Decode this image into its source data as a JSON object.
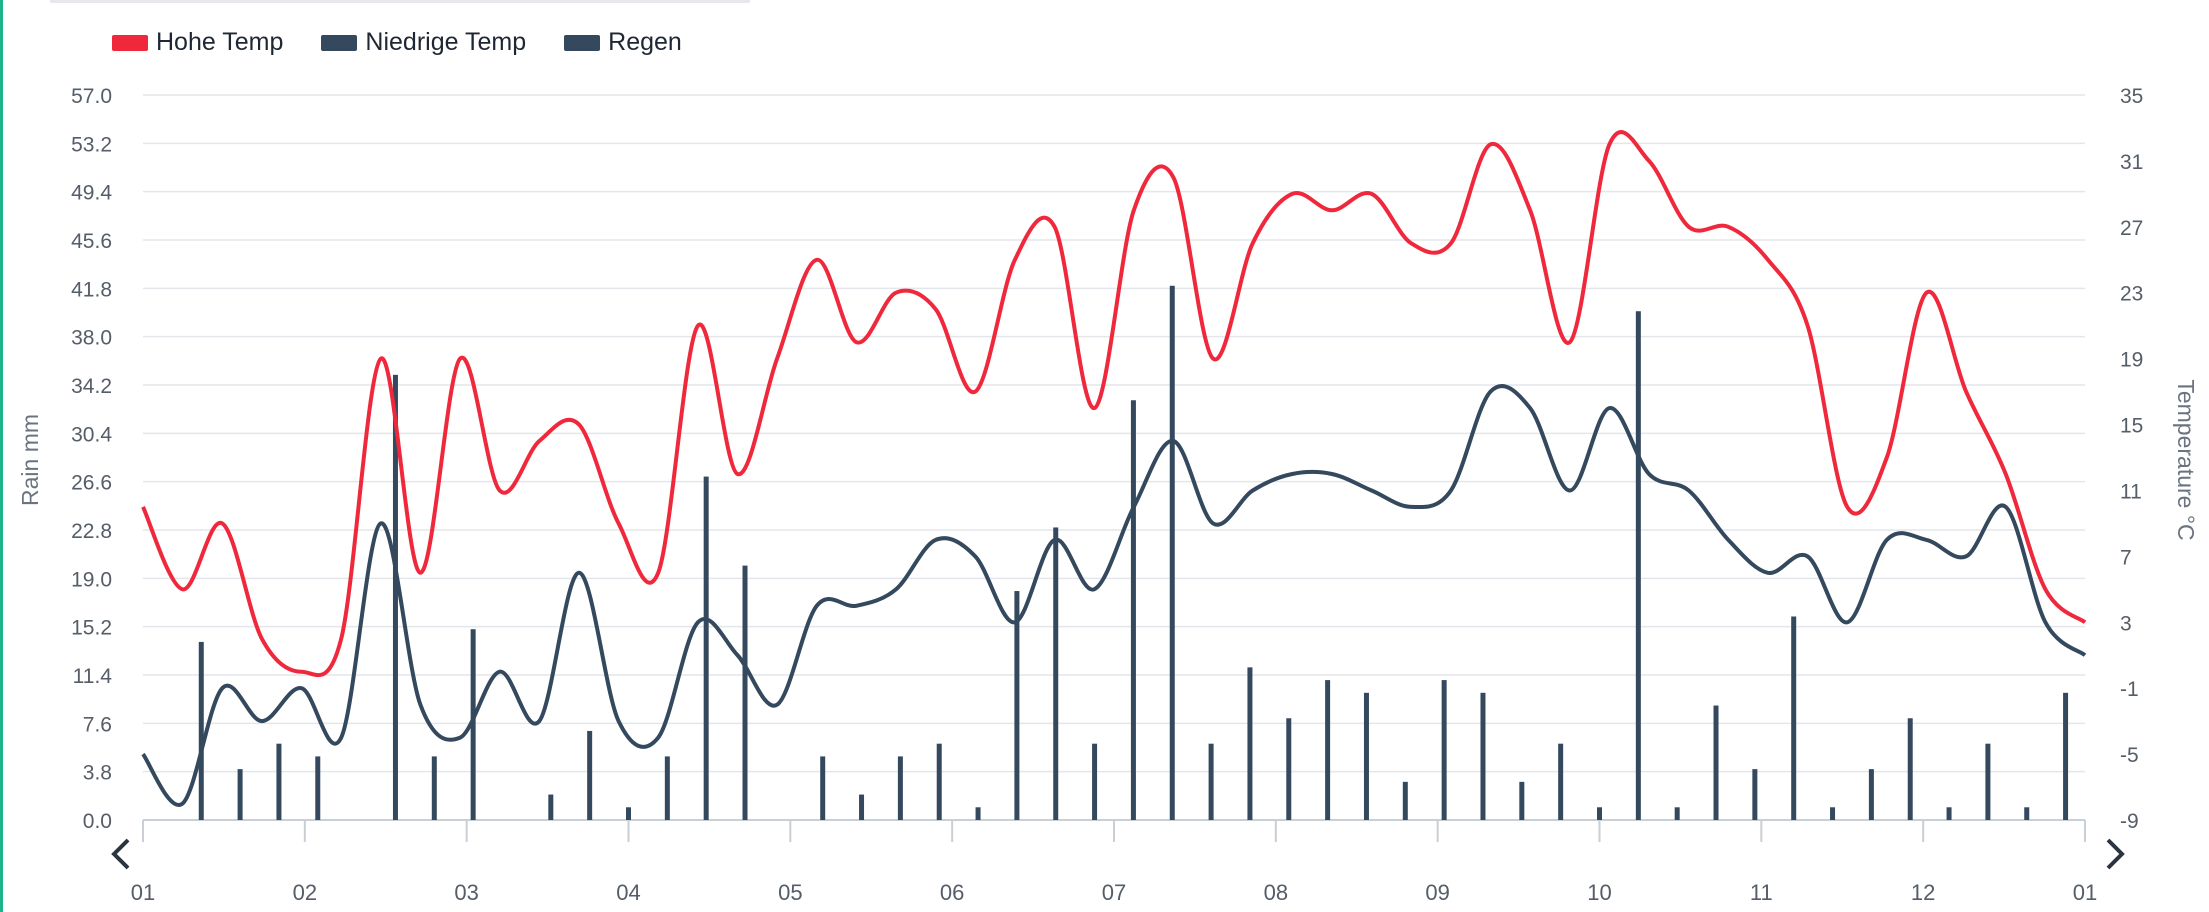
{
  "legend": [
    {
      "label": "Hohe Temp",
      "color": "#f0283c"
    },
    {
      "label": "Niedrige Temp",
      "color": "#34495e"
    },
    {
      "label": "Regen",
      "color": "#34495e"
    }
  ],
  "nav": {
    "prev_icon": "chevron-left-icon",
    "next_icon": "chevron-right-icon"
  },
  "chart_data": {
    "type": "line",
    "ylabel_left": "Rain mm",
    "ylabel_right": "Temperature °C",
    "y_left_ticks": [
      "57.0",
      "53.2",
      "49.4",
      "45.6",
      "41.8",
      "38.0",
      "34.2",
      "30.4",
      "26.6",
      "22.8",
      "19.0",
      "15.2",
      "11.4",
      "7.6",
      "3.8",
      "0.0"
    ],
    "y_right_ticks": [
      "35",
      "31",
      "27",
      "23",
      "19",
      "15",
      "11",
      "7",
      "3",
      "-1",
      "-5",
      "-9"
    ],
    "x_ticks": [
      "01",
      "02",
      "03",
      "04",
      "05",
      "06",
      "07",
      "08",
      "09",
      "10",
      "11",
      "12",
      "01"
    ],
    "y_left_range": [
      0,
      57
    ],
    "y_right_range": [
      -9,
      35
    ],
    "grid": true,
    "legend_position": "top-left",
    "months": [
      "Jan",
      "Feb",
      "Mar",
      "Apr",
      "May",
      "Jun",
      "Jul",
      "Aug",
      "Sep",
      "Oct",
      "Nov",
      "Dec"
    ],
    "series": [
      {
        "name": "Hohe Temp",
        "axis": "right",
        "unit": "°C",
        "values": [
          10,
          5,
          9,
          2,
          0,
          2,
          19,
          6,
          19,
          11,
          14,
          15,
          9,
          6,
          21,
          12,
          19,
          25,
          20,
          23,
          22,
          17,
          25,
          27,
          16,
          28,
          30,
          19,
          26,
          29,
          28,
          29,
          26,
          26,
          32,
          28,
          20,
          32,
          31,
          27,
          27,
          25,
          21,
          10,
          13,
          23,
          17,
          12,
          5,
          3
        ]
      },
      {
        "name": "Niedrige Temp",
        "axis": "right",
        "unit": "°C",
        "values": [
          -5,
          -8,
          -1,
          -3,
          -1,
          -4,
          9,
          -2,
          -4,
          0,
          -3,
          6,
          -3,
          -4,
          3,
          1,
          -2,
          4,
          4,
          5,
          8,
          7,
          3,
          8,
          5,
          10,
          14,
          9,
          11,
          12,
          12,
          11,
          10,
          11,
          17,
          16,
          11,
          16,
          12,
          11,
          8,
          6,
          7,
          3,
          8,
          8,
          7,
          10,
          3,
          1
        ]
      },
      {
        "name": "Regen",
        "axis": "left",
        "unit": "mm",
        "type": "bar",
        "values": [
          0,
          14,
          4,
          6,
          5,
          0,
          35,
          5,
          15,
          0,
          2,
          7,
          1,
          5,
          27,
          20,
          0,
          5,
          2,
          5,
          6,
          1,
          18,
          23,
          6,
          33,
          42,
          6,
          12,
          8,
          11,
          10,
          3,
          11,
          10,
          3,
          6,
          1,
          40,
          1,
          9,
          4,
          16,
          1,
          4,
          8,
          1,
          6,
          1,
          10
        ]
      }
    ]
  }
}
